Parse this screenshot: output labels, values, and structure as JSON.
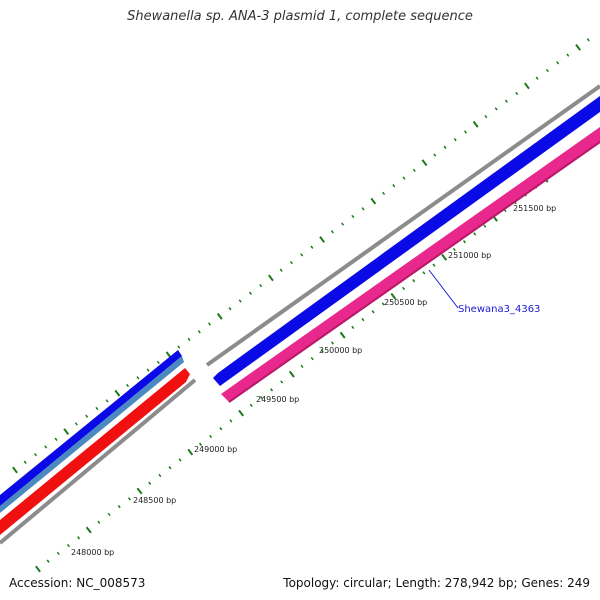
{
  "title": "Shewanella sp. ANA-3 plasmid 1, complete sequence",
  "accession": "Accession: NC_008573",
  "summary": "Topology: circular; Length: 278,942 bp; Genes: 249",
  "tick_labels": [
    "248000 bp",
    "248500 bp",
    "249000 bp",
    "249500 bp",
    "250000 bp",
    "250500 bp",
    "251000 bp",
    "251500 bp"
  ],
  "gene_label": "Shewana3_4363",
  "colors": {
    "backbone": "#8c8c8c",
    "forward_blue": "#0a0ae6",
    "reverse_red": "#f01010",
    "reverse_pink": "#e8288c",
    "light_blue": "#4a8ac0",
    "tick_green": "#1a7a1a",
    "gene_label": "#1a1ad6"
  }
}
